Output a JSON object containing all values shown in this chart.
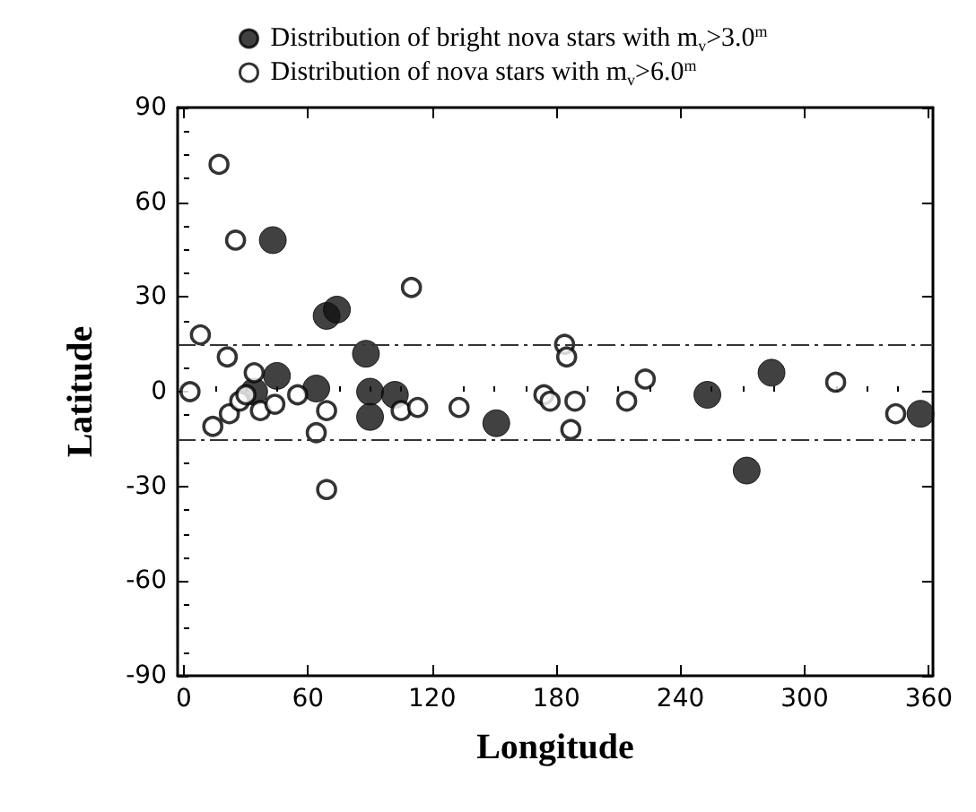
{
  "chart_data": {
    "type": "scatter",
    "xlabel": "Longitude",
    "ylabel": "Latitude",
    "xlim": [
      -3,
      362
    ],
    "ylim": [
      -90,
      90
    ],
    "xticks": [
      0,
      60,
      120,
      180,
      240,
      300,
      360
    ],
    "yticks": [
      -90,
      -60,
      -30,
      0,
      30,
      60,
      90
    ],
    "grid": false,
    "legend": "top",
    "marker": "circle",
    "series": [
      {
        "name": "Distribution of bright nova stars with m$_{v}$>3.0$^{m}$",
        "color": "#111111",
        "x": [
          43,
          69,
          74,
          88,
          34,
          45,
          64,
          90,
          90,
          102,
          151,
          253,
          284,
          272,
          356
        ],
        "values": [
          48,
          24,
          26,
          12,
          0,
          5,
          1,
          0,
          -8,
          -1,
          -10,
          -1,
          6,
          -25,
          -7
        ]
      },
      {
        "name": "Distribution of nova stars with m$_{v}$>6.0$^{m}$",
        "color": "#ffffff",
        "x": [
          17,
          25,
          8,
          3,
          21,
          14,
          22,
          27,
          30,
          34,
          37,
          44,
          55,
          64,
          69,
          69,
          110,
          105,
          113,
          133,
          184,
          185,
          174,
          177,
          189,
          187,
          214,
          223,
          315,
          344
        ],
        "values": [
          72,
          48,
          18,
          0,
          11,
          -11,
          -7,
          -3,
          -1,
          6,
          -6,
          -4,
          -1,
          -13,
          -6,
          -31,
          33,
          -6,
          -5,
          -5,
          15,
          11,
          -1,
          -3,
          -3,
          -12,
          -3,
          4,
          3,
          -7
        ]
      }
    ],
    "ref_lines": [
      {
        "axis": "y",
        "value": 15,
        "line_style": "dashed"
      },
      {
        "axis": "y",
        "value": -15,
        "line_style": "dashed"
      }
    ]
  }
}
